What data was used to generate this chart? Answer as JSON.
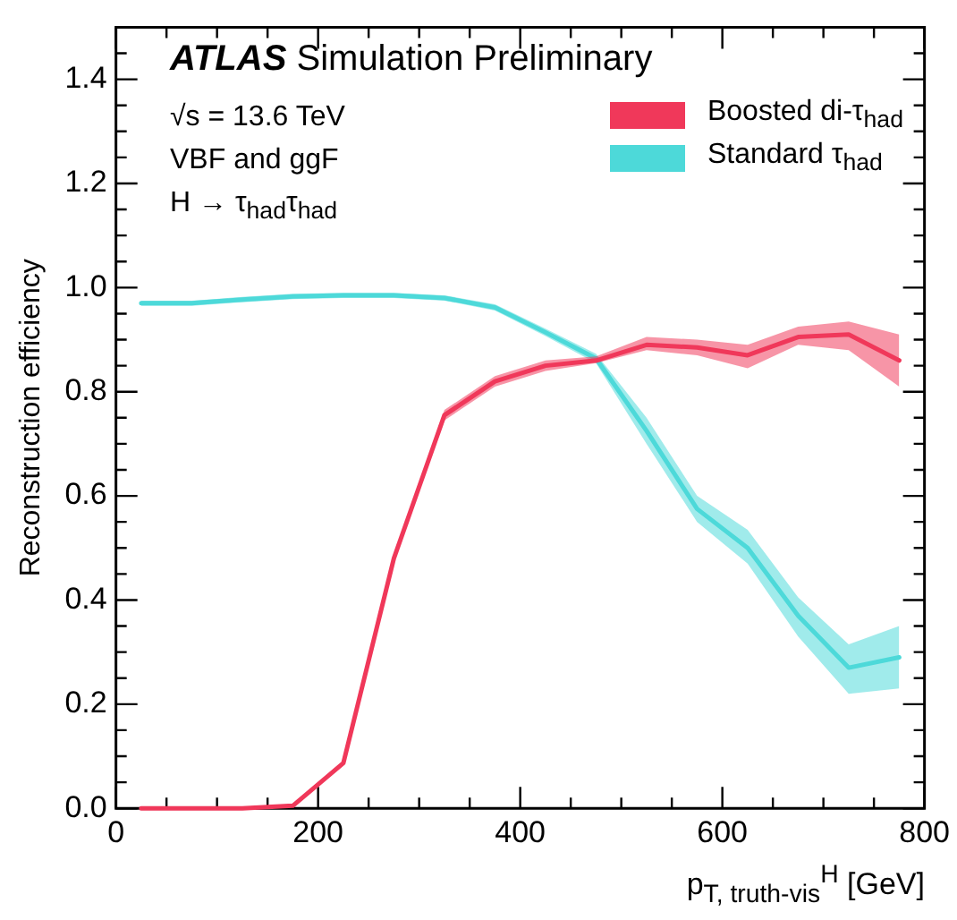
{
  "chart_data": {
    "type": "line",
    "title": "ATLAS Simulation Preliminary",
    "annotations": [
      "√s = 13.6 TeV",
      "VBF and ggF",
      "H → τ$_{had}$τ$_{had}$"
    ],
    "xlabel": "p$_{T, truth-vis}$$^{H}$ [GeV]",
    "ylabel": "Reconstruction efficiency",
    "x": [
      25,
      75,
      125,
      175,
      225,
      275,
      325,
      375,
      425,
      475,
      525,
      575,
      625,
      675,
      725,
      775
    ],
    "series": [
      {
        "name": "Boosted di-τ$_{had}$",
        "color": "#f0385a",
        "values": [
          0,
          0,
          0,
          0.005,
          0.087,
          0.48,
          0.755,
          0.82,
          0.85,
          0.86,
          0.89,
          0.885,
          0.87,
          0.905,
          0.91,
          0.86
        ],
        "lower": [
          0,
          0,
          0,
          0.003,
          0.082,
          0.475,
          0.745,
          0.81,
          0.84,
          0.855,
          0.88,
          0.87,
          0.845,
          0.89,
          0.88,
          0.81
        ],
        "upper": [
          0.003,
          0.003,
          0.003,
          0.008,
          0.092,
          0.485,
          0.765,
          0.83,
          0.86,
          0.868,
          0.905,
          0.9,
          0.89,
          0.925,
          0.935,
          0.91
        ]
      },
      {
        "name": "Standard τ$_{had}$",
        "color": "#4dd9d9",
        "values": [
          0.97,
          0.97,
          0.977,
          0.983,
          0.985,
          0.985,
          0.98,
          0.962,
          0.914,
          0.864,
          0.725,
          0.575,
          0.5,
          0.37,
          0.27,
          0.29
        ],
        "lower": [
          0.965,
          0.965,
          0.972,
          0.978,
          0.98,
          0.98,
          0.975,
          0.956,
          0.907,
          0.855,
          0.7,
          0.55,
          0.47,
          0.33,
          0.22,
          0.23
        ],
        "upper": [
          0.975,
          0.975,
          0.982,
          0.988,
          0.99,
          0.99,
          0.985,
          0.968,
          0.921,
          0.873,
          0.75,
          0.6,
          0.535,
          0.405,
          0.315,
          0.35
        ]
      }
    ],
    "xlim": [
      0,
      800
    ],
    "xticks": [
      0,
      {
        "value": 50,
        "label": null
      },
      {
        "value": 100,
        "label": null
      },
      {
        "value": 150,
        "label": null
      },
      200,
      {
        "value": 250,
        "label": null
      },
      {
        "value": 300,
        "label": null
      },
      {
        "value": 350,
        "label": null
      },
      400,
      {
        "value": 450,
        "label": null
      },
      {
        "value": 500,
        "label": null
      },
      {
        "value": 550,
        "label": null
      },
      600,
      {
        "value": 650,
        "label": null
      },
      {
        "value": 700,
        "label": null
      },
      {
        "value": 750,
        "label": null
      },
      800
    ],
    "ylim": [
      0,
      1.5
    ],
    "yticks": [
      {
        "value": 0,
        "label": "0.0"
      },
      {
        "value": 0.05,
        "label": null
      },
      {
        "value": 0.1,
        "label": null
      },
      {
        "value": 0.15,
        "label": null
      },
      {
        "value": 0.2,
        "label": "0.2"
      },
      {
        "value": 0.25,
        "label": null
      },
      {
        "value": 0.3,
        "label": null
      },
      {
        "value": 0.35,
        "label": null
      },
      {
        "value": 0.4,
        "label": "0.4"
      },
      {
        "value": 0.45,
        "label": null
      },
      {
        "value": 0.5,
        "label": null
      },
      {
        "value": 0.55,
        "label": null
      },
      {
        "value": 0.6,
        "label": "0.6"
      },
      {
        "value": 0.65,
        "label": null
      },
      {
        "value": 0.7,
        "label": null
      },
      {
        "value": 0.75,
        "label": null
      },
      {
        "value": 0.8,
        "label": "0.8"
      },
      {
        "value": 0.85,
        "label": null
      },
      {
        "value": 0.9,
        "label": null
      },
      {
        "value": 0.95,
        "label": null
      },
      {
        "value": 1,
        "label": "1.0"
      },
      {
        "value": 1.05,
        "label": null
      },
      {
        "value": 1.1,
        "label": null
      },
      {
        "value": 1.15,
        "label": null
      },
      {
        "value": 1.2,
        "label": "1.2"
      },
      {
        "value": 1.25,
        "label": null
      },
      {
        "value": 1.3,
        "label": null
      },
      {
        "value": 1.35,
        "label": null
      },
      {
        "value": 1.4,
        "label": "1.4"
      },
      {
        "value": 1.45,
        "label": null
      },
      {
        "value": 1.5,
        "label": null
      }
    ],
    "legend": "top right",
    "grid": false
  }
}
